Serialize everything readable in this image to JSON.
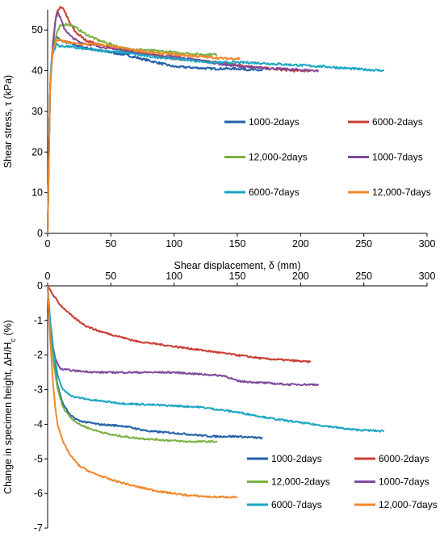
{
  "chart_data": [
    {
      "type": "line",
      "title": "",
      "xlabel": "Shear displacement, δ (mm)",
      "ylabel": "Shear stress, τ (kPa)",
      "xlim": [
        0,
        300
      ],
      "ylim": [
        0,
        55
      ],
      "xticks": [
        0,
        50,
        100,
        150,
        200,
        250,
        300
      ],
      "yticks": [
        0,
        10,
        20,
        30,
        40,
        50
      ],
      "grid": false,
      "legend": "center-right, 2 columns",
      "series": [
        {
          "name": "1000-2days",
          "color": "#2260a8",
          "points": [
            [
              0,
              0
            ],
            [
              1,
              20
            ],
            [
              2,
              36
            ],
            [
              3,
              42
            ],
            [
              4,
              45
            ],
            [
              5,
              47
            ],
            [
              7,
              48.3
            ],
            [
              10,
              47.5
            ],
            [
              15,
              47
            ],
            [
              25,
              46
            ],
            [
              40,
              45
            ],
            [
              60,
              44
            ],
            [
              80,
              42.5
            ],
            [
              100,
              41
            ],
            [
              130,
              40.5
            ],
            [
              150,
              40.5
            ],
            [
              170,
              40
            ]
          ]
        },
        {
          "name": "6000-2days",
          "color": "#cc3c32",
          "points": [
            [
              0,
              0
            ],
            [
              1,
              20
            ],
            [
              2,
              36
            ],
            [
              4,
              46
            ],
            [
              6,
              52
            ],
            [
              8,
              55
            ],
            [
              10,
              55.5
            ],
            [
              13,
              55
            ],
            [
              17,
              52
            ],
            [
              22,
              49.5
            ],
            [
              30,
              47.5
            ],
            [
              45,
              46
            ],
            [
              60,
              45
            ],
            [
              80,
              44
            ],
            [
              100,
              43
            ],
            [
              120,
              42.5
            ],
            [
              150,
              41.5
            ],
            [
              175,
              40.5
            ],
            [
              195,
              40
            ],
            [
              208,
              40
            ]
          ]
        },
        {
          "name": "12,000-2days",
          "color": "#7ab143",
          "points": [
            [
              0,
              0
            ],
            [
              1,
              20
            ],
            [
              2,
              36
            ],
            [
              4,
              45
            ],
            [
              7,
              49
            ],
            [
              10,
              51
            ],
            [
              15,
              51.5
            ],
            [
              20,
              51
            ],
            [
              30,
              49
            ],
            [
              40,
              47.5
            ],
            [
              50,
              46.5
            ],
            [
              60,
              45.5
            ],
            [
              80,
              45
            ],
            [
              100,
              44.5
            ],
            [
              120,
              44
            ],
            [
              134,
              44
            ]
          ]
        },
        {
          "name": "1000-7days",
          "color": "#7f4a9c",
          "points": [
            [
              0,
              0
            ],
            [
              1,
              20
            ],
            [
              2,
              36
            ],
            [
              4,
              46
            ],
            [
              6,
              52
            ],
            [
              8,
              54.5
            ],
            [
              10,
              53
            ],
            [
              13,
              50.5
            ],
            [
              18,
              48.5
            ],
            [
              25,
              47
            ],
            [
              40,
              46
            ],
            [
              60,
              45
            ],
            [
              80,
              44
            ],
            [
              100,
              43.5
            ],
            [
              120,
              42.5
            ],
            [
              140,
              41.5
            ],
            [
              160,
              40.8
            ],
            [
              180,
              40.5
            ],
            [
              200,
              40.2
            ],
            [
              214,
              40
            ]
          ]
        },
        {
          "name": "6000-7days",
          "color": "#1aa6c3",
          "points": [
            [
              0,
              0
            ],
            [
              1,
              20
            ],
            [
              2,
              36
            ],
            [
              3,
              42
            ],
            [
              4,
              44
            ],
            [
              5,
              45
            ],
            [
              7,
              46.5
            ],
            [
              10,
              46
            ],
            [
              15,
              46
            ],
            [
              25,
              45.5
            ],
            [
              40,
              45
            ],
            [
              60,
              44.5
            ],
            [
              80,
              43.5
            ],
            [
              100,
              43
            ],
            [
              130,
              42
            ],
            [
              160,
              42
            ],
            [
              190,
              41.5
            ],
            [
              220,
              41
            ],
            [
              240,
              40.5
            ],
            [
              266,
              40
            ]
          ]
        },
        {
          "name": "12,000-7days",
          "color": "#f28728",
          "points": [
            [
              0,
              0
            ],
            [
              1,
              20
            ],
            [
              2,
              36
            ],
            [
              4,
              45
            ],
            [
              7,
              47.5
            ],
            [
              10,
              47.5
            ],
            [
              15,
              47
            ],
            [
              25,
              46.5
            ],
            [
              40,
              46.5
            ],
            [
              60,
              45.5
            ],
            [
              80,
              44.5
            ],
            [
              100,
              44
            ],
            [
              120,
              43.5
            ],
            [
              140,
              43
            ],
            [
              152,
              43
            ]
          ]
        }
      ]
    },
    {
      "type": "line",
      "title": "",
      "xlabel": "",
      "ylabel": "Change in specimen height, ΔH/Hc (%)",
      "ylabel_main": "Change in specimen height, ΔH/H",
      "ylabel_sub": "c",
      "ylabel_tail": " (%)",
      "xlim": [
        0,
        300
      ],
      "ylim": [
        -7,
        0
      ],
      "xticks": [
        0,
        50,
        100,
        150,
        200,
        250,
        300
      ],
      "yticks": [
        0,
        -1,
        -2,
        -3,
        -4,
        -5,
        -6,
        -7
      ],
      "grid": false,
      "legend": "bottom-right, 2 columns",
      "series": [
        {
          "name": "1000-2days",
          "color": "#2260a8",
          "points": [
            [
              0,
              0
            ],
            [
              2,
              -1.2
            ],
            [
              5,
              -2.2
            ],
            [
              8,
              -2.9
            ],
            [
              12,
              -3.4
            ],
            [
              18,
              -3.75
            ],
            [
              25,
              -3.9
            ],
            [
              40,
              -4.0
            ],
            [
              60,
              -4.05
            ],
            [
              80,
              -4.2
            ],
            [
              100,
              -4.25
            ],
            [
              130,
              -4.35
            ],
            [
              150,
              -4.35
            ],
            [
              170,
              -4.4
            ]
          ]
        },
        {
          "name": "6000-2days",
          "color": "#cc3c32",
          "points": [
            [
              0,
              0
            ],
            [
              5,
              -0.3
            ],
            [
              10,
              -0.55
            ],
            [
              20,
              -0.9
            ],
            [
              30,
              -1.15
            ],
            [
              40,
              -1.3
            ],
            [
              55,
              -1.45
            ],
            [
              70,
              -1.6
            ],
            [
              90,
              -1.7
            ],
            [
              110,
              -1.8
            ],
            [
              130,
              -1.9
            ],
            [
              150,
              -2.0
            ],
            [
              170,
              -2.1
            ],
            [
              190,
              -2.15
            ],
            [
              208,
              -2.2
            ]
          ]
        },
        {
          "name": "12,000-2days",
          "color": "#7ab143",
          "points": [
            [
              0,
              0
            ],
            [
              2,
              -1.2
            ],
            [
              5,
              -2.3
            ],
            [
              8,
              -3.0
            ],
            [
              12,
              -3.5
            ],
            [
              18,
              -3.8
            ],
            [
              25,
              -4.0
            ],
            [
              35,
              -4.15
            ],
            [
              50,
              -4.3
            ],
            [
              70,
              -4.4
            ],
            [
              90,
              -4.45
            ],
            [
              110,
              -4.5
            ],
            [
              134,
              -4.5
            ]
          ]
        },
        {
          "name": "1000-7days",
          "color": "#7f4a9c",
          "points": [
            [
              0,
              0
            ],
            [
              2,
              -1.0
            ],
            [
              4,
              -1.7
            ],
            [
              6,
              -2.1
            ],
            [
              10,
              -2.4
            ],
            [
              20,
              -2.45
            ],
            [
              40,
              -2.5
            ],
            [
              60,
              -2.5
            ],
            [
              80,
              -2.5
            ],
            [
              100,
              -2.5
            ],
            [
              120,
              -2.55
            ],
            [
              140,
              -2.6
            ],
            [
              150,
              -2.75
            ],
            [
              170,
              -2.8
            ],
            [
              190,
              -2.85
            ],
            [
              214,
              -2.85
            ]
          ]
        },
        {
          "name": "6000-7days",
          "color": "#1aa6c3",
          "points": [
            [
              0,
              0
            ],
            [
              2,
              -1.0
            ],
            [
              5,
              -2.0
            ],
            [
              8,
              -2.6
            ],
            [
              12,
              -3.0
            ],
            [
              20,
              -3.2
            ],
            [
              35,
              -3.3
            ],
            [
              60,
              -3.4
            ],
            [
              90,
              -3.45
            ],
            [
              120,
              -3.5
            ],
            [
              150,
              -3.65
            ],
            [
              180,
              -3.85
            ],
            [
              210,
              -4.0
            ],
            [
              240,
              -4.15
            ],
            [
              266,
              -4.2
            ]
          ]
        },
        {
          "name": "12,000-7days",
          "color": "#f28728",
          "points": [
            [
              0,
              0
            ],
            [
              2,
              -1.5
            ],
            [
              4,
              -2.7
            ],
            [
              6,
              -3.5
            ],
            [
              8,
              -4.0
            ],
            [
              12,
              -4.5
            ],
            [
              18,
              -4.9
            ],
            [
              25,
              -5.2
            ],
            [
              35,
              -5.4
            ],
            [
              50,
              -5.6
            ],
            [
              70,
              -5.8
            ],
            [
              90,
              -5.95
            ],
            [
              110,
              -6.05
            ],
            [
              130,
              -6.1
            ],
            [
              150,
              -6.1
            ]
          ]
        }
      ]
    }
  ]
}
